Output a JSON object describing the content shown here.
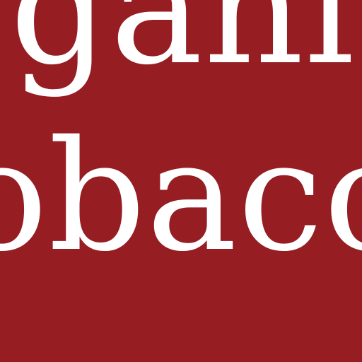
{
  "colors": {
    "background": "#961d22",
    "text": "#ffffff"
  },
  "text": {
    "line1": "gani",
    "line2": "obaco"
  }
}
